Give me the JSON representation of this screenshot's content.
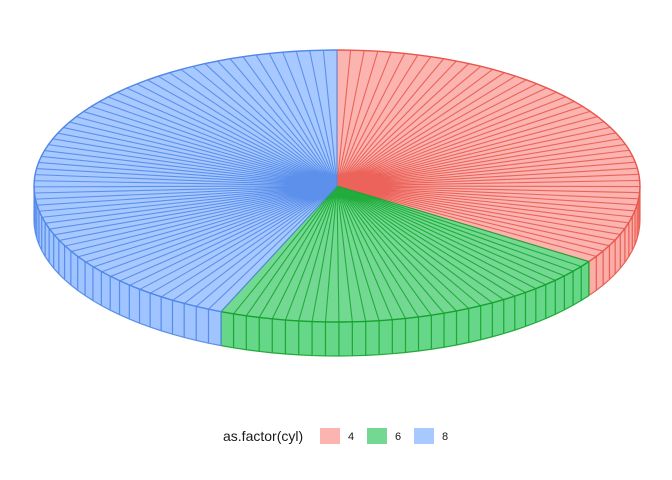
{
  "chart_data": {
    "type": "pie",
    "style": "3d",
    "legend": {
      "title": "as.factor(cyl)",
      "placement": "bottom"
    },
    "slices": [
      {
        "label": "4",
        "value": 11,
        "fill": "#F8766D",
        "stroke": "#E8554B"
      },
      {
        "label": "6",
        "value": 7,
        "fill": "#00BA38",
        "stroke": "#14A32E"
      },
      {
        "label": "8",
        "value": 14,
        "fill": "#619CFF",
        "stroke": "#4F86E8"
      }
    ]
  }
}
